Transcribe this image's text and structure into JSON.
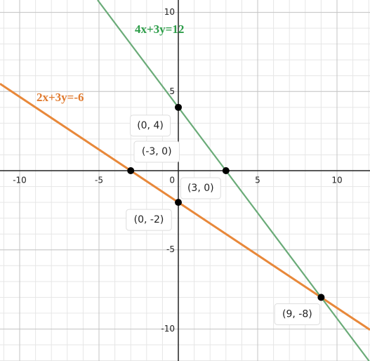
{
  "chart_data": {
    "type": "line",
    "xlim": [
      -11.24,
      12.08
    ],
    "ylim": [
      -12.02,
      10.78
    ],
    "xticks": [
      -10,
      -5,
      0,
      5,
      10
    ],
    "yticks": [
      -10,
      -5,
      5,
      10
    ],
    "grid": true,
    "minor_grid": true,
    "series": [
      {
        "name": "2x+3y=-6",
        "color": "#e8883a",
        "x": [
          -11.24,
          -3,
          0,
          9,
          12.08
        ],
        "values": [
          5.49,
          0,
          -2,
          -8,
          -10.05
        ]
      },
      {
        "name": "4x+3y=12",
        "color": "#6aab78",
        "x": [
          -5.09,
          0,
          3,
          9,
          12.02
        ],
        "values": [
          10.78,
          4,
          0,
          -8,
          -12.02
        ]
      }
    ],
    "points": [
      {
        "x": 0,
        "y": 4,
        "label": "(0, 4)"
      },
      {
        "x": -3,
        "y": 0,
        "label": "(-3, 0)"
      },
      {
        "x": 3,
        "y": 0,
        "label": "(3, 0)"
      },
      {
        "x": 0,
        "y": -2,
        "label": "(0, -2)"
      },
      {
        "x": 9,
        "y": -8,
        "label": "(9, -8)"
      }
    ]
  }
}
